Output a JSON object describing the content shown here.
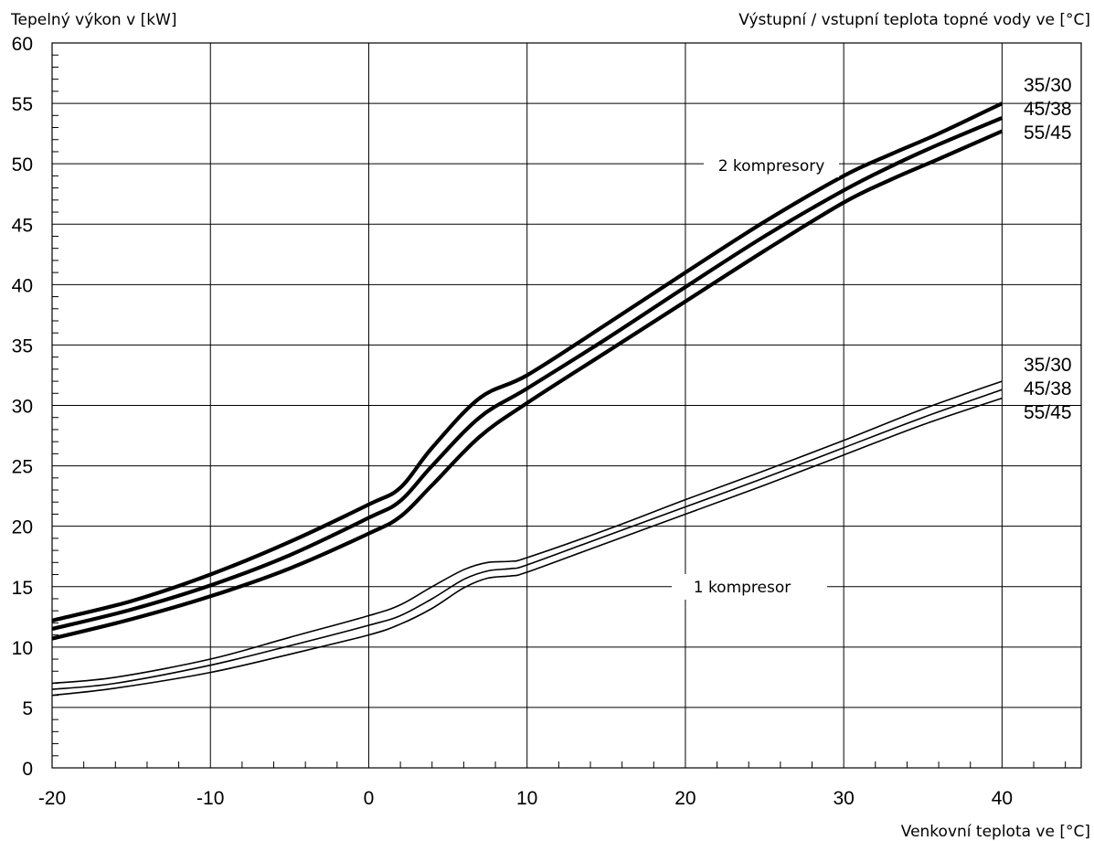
{
  "chart_data": {
    "type": "line",
    "ylabel": "Tepelný výkon v [kW]",
    "legend_title": "Výstupní / vstupní teplota topné vody ve [°C]",
    "xlabel": "Venkovní teplota ve [°C]",
    "xlim": [
      -20,
      45
    ],
    "ylim": [
      0,
      60
    ],
    "xticks": [
      "-20",
      "-10",
      "0",
      "10",
      "20",
      "30",
      "40"
    ],
    "yticks": [
      "0",
      "5",
      "10",
      "15",
      "20",
      "25",
      "30",
      "35",
      "40",
      "45",
      "50",
      "55",
      "60"
    ],
    "grid": true,
    "annotations": {
      "two": "2 kompresory",
      "one": "1 kompresor"
    },
    "groups": [
      {
        "name": "2 kompresory",
        "series": [
          {
            "name": "35/30",
            "x": [
              -20,
              -15,
              -10,
              -5,
              0,
              2,
              4,
              7,
              10,
              15,
              20,
              25,
              30,
              33,
              36,
              40
            ],
            "y": [
              12.2,
              13.8,
              16.0,
              18.7,
              21.8,
              23.2,
              26.5,
              30.6,
              32.5,
              36.7,
              41.0,
              45.2,
              49.0,
              50.8,
              52.5,
              55.0
            ]
          },
          {
            "name": "45/38",
            "x": [
              -20,
              -15,
              -10,
              -5,
              0,
              2,
              4,
              7,
              10,
              15,
              20,
              25,
              30,
              33,
              36,
              40
            ],
            "y": [
              11.5,
              13.1,
              15.1,
              17.6,
              20.7,
              22.1,
              25.0,
              29.0,
              31.4,
              35.5,
              39.8,
              44.0,
              47.8,
              49.8,
              51.6,
              53.8
            ]
          },
          {
            "name": "55/45",
            "x": [
              -20,
              -15,
              -10,
              -5,
              0,
              2,
              4,
              7,
              10,
              15,
              20,
              25,
              30,
              33,
              36,
              40
            ],
            "y": [
              10.7,
              12.3,
              14.2,
              16.5,
              19.4,
              20.8,
              23.4,
              27.4,
              30.2,
              34.4,
              38.6,
              42.8,
              46.8,
              48.7,
              50.4,
              52.7
            ]
          }
        ]
      },
      {
        "name": "1 kompresor",
        "series": [
          {
            "name": "35/30",
            "x": [
              -20,
              -16,
              -10,
              -5,
              0,
              2,
              4,
              6,
              7.5,
              9,
              10,
              15,
              20,
              25,
              30,
              35,
              40
            ],
            "y": [
              7.0,
              7.5,
              9.0,
              10.8,
              12.6,
              13.5,
              15.0,
              16.4,
              17.0,
              17.1,
              17.4,
              19.7,
              22.2,
              24.6,
              27.1,
              29.7,
              32.0
            ]
          },
          {
            "name": "45/38",
            "x": [
              -20,
              -16,
              -10,
              -5,
              0,
              2,
              4,
              6,
              7.5,
              9,
              10,
              15,
              20,
              25,
              30,
              35,
              40
            ],
            "y": [
              6.5,
              7.0,
              8.5,
              10.1,
              11.8,
              12.6,
              14.0,
              15.6,
              16.3,
              16.5,
              16.8,
              19.2,
              21.6,
              24.0,
              26.5,
              29.0,
              31.3
            ]
          },
          {
            "name": "55/45",
            "x": [
              -20,
              -16,
              -10,
              -5,
              0,
              2,
              4,
              6,
              7.5,
              9,
              10,
              15,
              20,
              25,
              30,
              35,
              40
            ],
            "y": [
              6.0,
              6.6,
              7.9,
              9.4,
              11.0,
              11.9,
              13.2,
              14.9,
              15.7,
              15.9,
              16.2,
              18.6,
              21.0,
              23.4,
              25.9,
              28.4,
              30.6
            ]
          }
        ]
      }
    ]
  }
}
